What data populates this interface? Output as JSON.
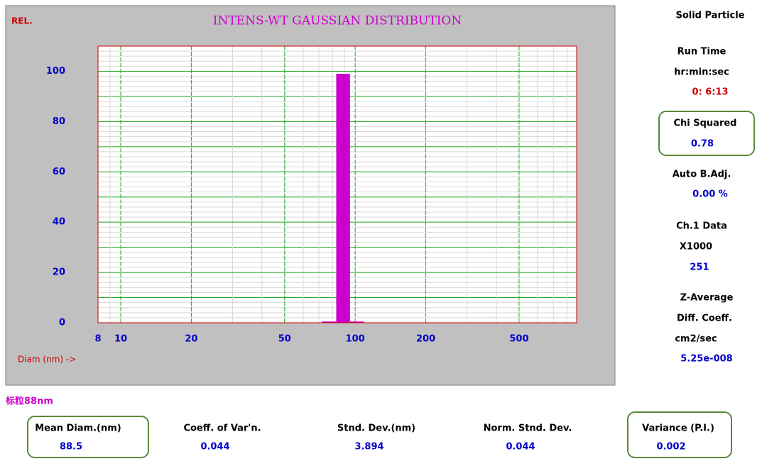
{
  "chart_data": {
    "type": "histogram",
    "title": "INTENS-WT GAUSSIAN DISTRIBUTION",
    "y_label": "REL.",
    "x_label": "Diam (nm) ->",
    "bins": [
      72,
      83,
      95,
      109
    ],
    "values": [
      0.5,
      99,
      0.5
    ],
    "color": "#cc00cc",
    "log_x": true,
    "grid": true,
    "xlim": [
      8,
      880
    ],
    "xticks": [
      8,
      10,
      20,
      50,
      100,
      200,
      500
    ],
    "ylim": [
      0,
      110
    ],
    "yticks": [
      0,
      20,
      40,
      60,
      80,
      100
    ]
  },
  "side_panel": {
    "mode": "Solid Particle",
    "run_time_label": "Run Time",
    "run_time_unit": "hr:min:sec",
    "run_time": "0: 6:13",
    "chi_squared_label": "Chi Squared",
    "chi_squared": 0.78,
    "baseline_label": "Auto B.Adj.",
    "baseline": "0.00 %",
    "channel_label": "Ch.1 Data",
    "channel_unit": "X1000",
    "channel": 251,
    "z_average_label": "Z-Average",
    "diff_coeff_label": "Diff. Coeff.",
    "diff_coeff_unit": "cm2/sec",
    "diff_coeff": "5.25e-008"
  },
  "sample_label": "标粒88nm",
  "results": [
    {
      "label": "Mean Diam.(nm)",
      "value": 88.5
    },
    {
      "label": "Coeff. of Var'n.",
      "value": 0.044
    },
    {
      "label": "Stnd. Dev.(nm)",
      "value": 3.894
    },
    {
      "label": "Norm. Stnd. Dev.",
      "value": 0.044
    },
    {
      "label": "Variance (P.I.)",
      "value": 0.002
    }
  ]
}
